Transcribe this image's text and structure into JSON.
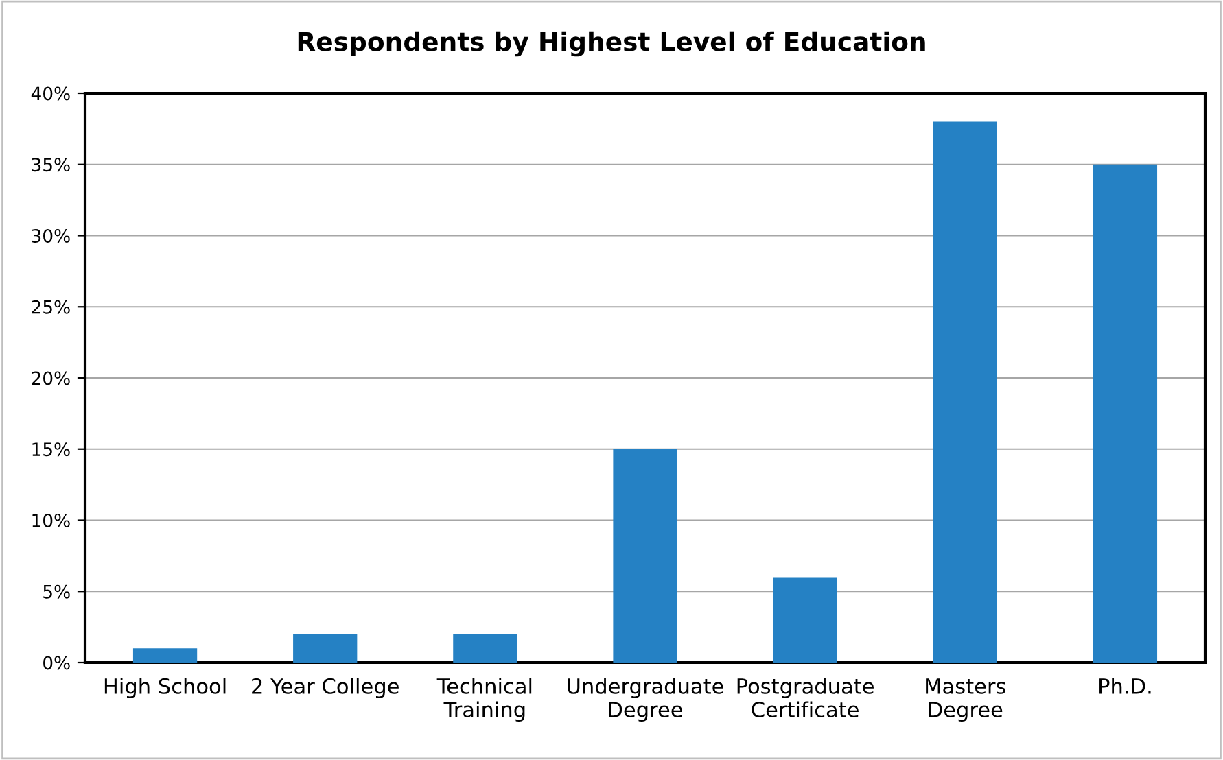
{
  "chart_data": {
    "type": "bar",
    "title": "Respondents by Highest Level of Education",
    "categories": [
      "High School",
      "2 Year College",
      "Technical\nTraining",
      "Undergraduate\nDegree",
      "Postgraduate\nCertificate",
      "Masters\nDegree",
      "Ph.D."
    ],
    "values": [
      1,
      2,
      2,
      15,
      6,
      38,
      35
    ],
    "color": "#2581c4",
    "ylim": [
      0,
      40
    ],
    "yticks": [
      {
        "value": 0,
        "label": "0%"
      },
      {
        "value": 5,
        "label": "5%"
      },
      {
        "value": 10,
        "label": "10%"
      },
      {
        "value": 15,
        "label": "15%"
      },
      {
        "value": 20,
        "label": "20%"
      },
      {
        "value": 25,
        "label": "25%"
      },
      {
        "value": 30,
        "label": "30%"
      },
      {
        "value": 35,
        "label": "35%"
      },
      {
        "value": 40,
        "label": "40%"
      }
    ],
    "grid": "y",
    "legend": false
  }
}
